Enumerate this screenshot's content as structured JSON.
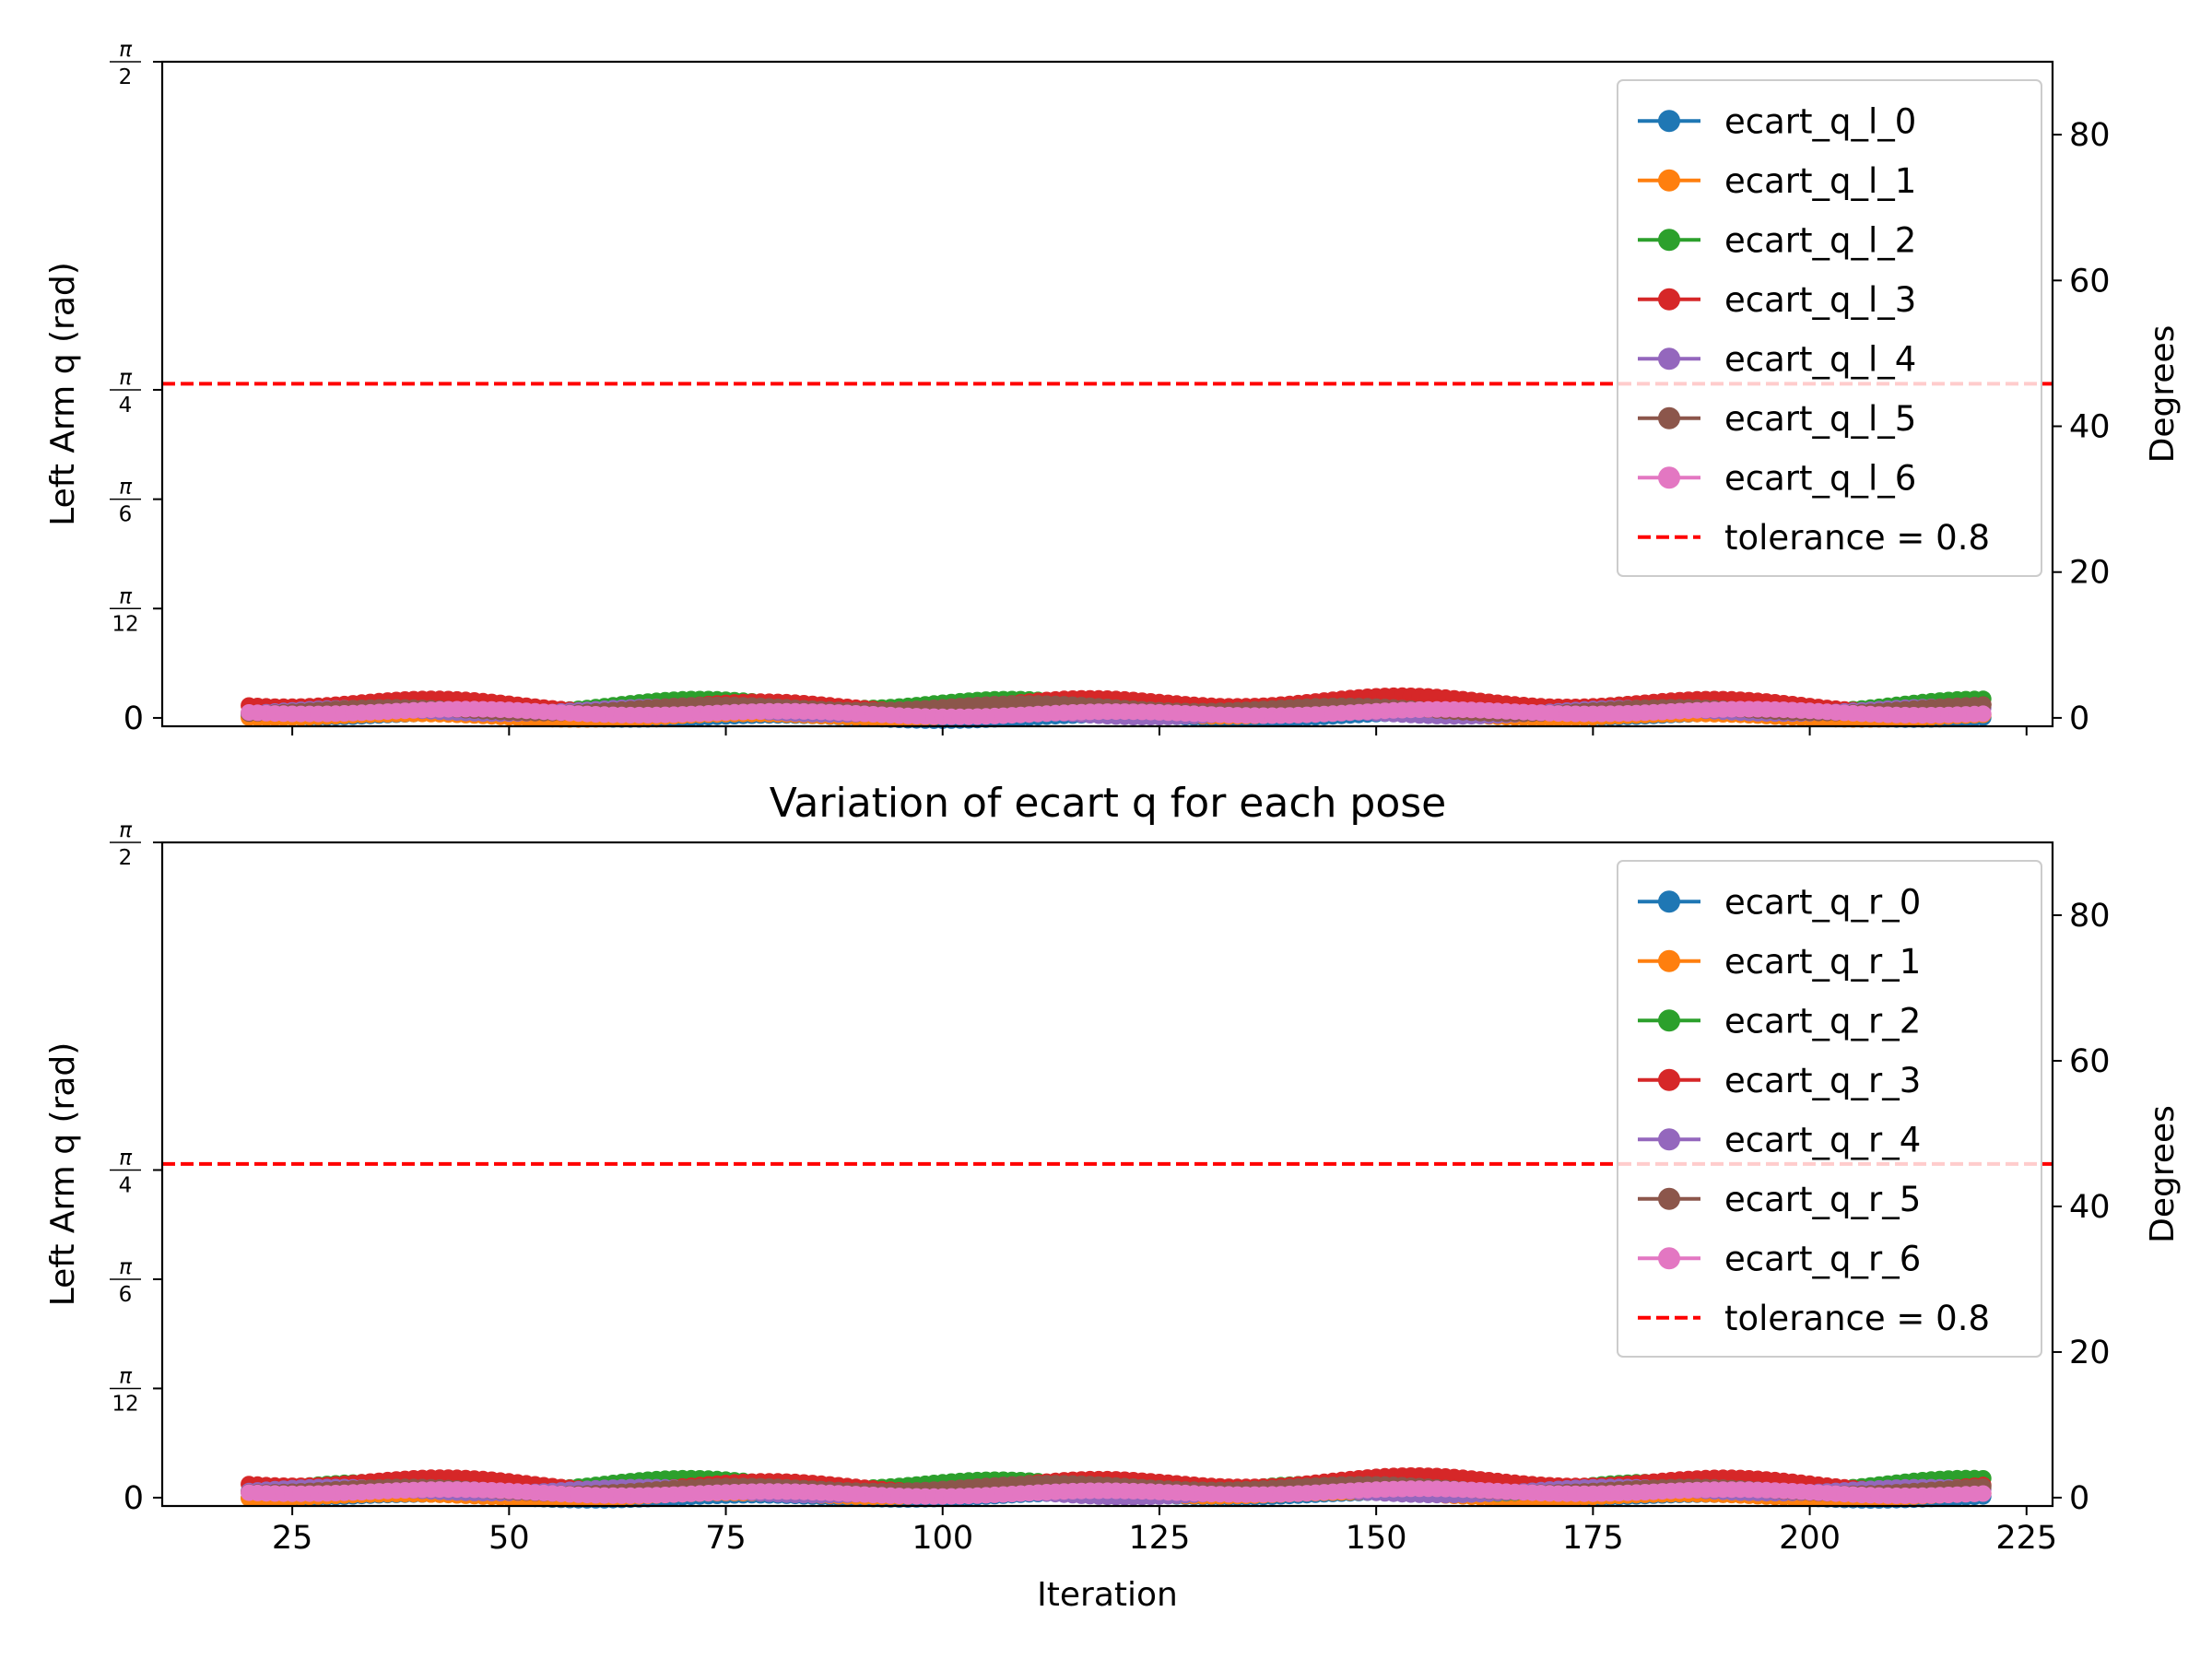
{
  "figure": {
    "title": "Variation of ecart q for each pose"
  },
  "chart_data": [
    {
      "type": "line",
      "title": "",
      "xlabel": "",
      "ylabel": "Left Arm q (rad)",
      "ylabel_right": "Degrees",
      "xlim": [
        10,
        228
      ],
      "ylim": [
        -0.02,
        1.5708
      ],
      "ylim_right_deg": [
        -1.15,
        90
      ],
      "x_ticks": [
        25,
        50,
        75,
        100,
        125,
        150,
        175,
        200,
        225
      ],
      "x_tick_labels": [
        "",
        "",
        "",
        "",
        "",
        "",
        "",
        "",
        ""
      ],
      "y_ticks": [
        {
          "value": 0,
          "label": "0"
        },
        {
          "value": 0.2618,
          "num": "π",
          "den": "12"
        },
        {
          "value": 0.5236,
          "num": "π",
          "den": "6"
        },
        {
          "value": 0.7854,
          "num": "π",
          "den": "4"
        },
        {
          "value": 1.5708,
          "num": "π",
          "den": "2"
        }
      ],
      "y_ticks_right": [
        0,
        20,
        40,
        60,
        80
      ],
      "tolerance": {
        "value": 0.8,
        "label": "tolerance = 0.8",
        "color": "#ff0000"
      },
      "legend_position": "upper right",
      "x": [
        20,
        220
      ],
      "series": [
        {
          "name": "ecart_q_l_0",
          "color": "#1f77b4",
          "base": 0.003,
          "amp": 0.006,
          "phase": 0.3
        },
        {
          "name": "ecart_q_l_1",
          "color": "#ff7f0e",
          "base": 0.006,
          "amp": 0.006,
          "phase": 1.1
        },
        {
          "name": "ecart_q_l_2",
          "color": "#2ca02c",
          "base": 0.028,
          "amp": 0.012,
          "phase": 2.0
        },
        {
          "name": "ecart_q_l_3",
          "color": "#d62728",
          "base": 0.034,
          "amp": 0.012,
          "phase": 0.7
        },
        {
          "name": "ecart_q_l_4",
          "color": "#9467bd",
          "base": 0.014,
          "amp": 0.008,
          "phase": 2.6
        },
        {
          "name": "ecart_q_l_5",
          "color": "#8c564b",
          "base": 0.022,
          "amp": 0.008,
          "phase": 1.7
        },
        {
          "name": "ecart_q_l_6",
          "color": "#e377c2",
          "base": 0.012,
          "amp": 0.006,
          "phase": 0.1
        }
      ]
    },
    {
      "type": "line",
      "title": "Variation of ecart q for each pose",
      "xlabel": "Iteration",
      "ylabel": "Left Arm q (rad)",
      "ylabel_right": "Degrees",
      "xlim": [
        10,
        228
      ],
      "ylim": [
        -0.02,
        1.5708
      ],
      "ylim_right_deg": [
        -1.15,
        90
      ],
      "x_ticks": [
        25,
        50,
        75,
        100,
        125,
        150,
        175,
        200,
        225
      ],
      "x_tick_labels": [
        "25",
        "50",
        "75",
        "100",
        "125",
        "150",
        "175",
        "200",
        "225"
      ],
      "y_ticks": [
        {
          "value": 0,
          "label": "0"
        },
        {
          "value": 0.2618,
          "num": "π",
          "den": "12"
        },
        {
          "value": 0.5236,
          "num": "π",
          "den": "6"
        },
        {
          "value": 0.7854,
          "num": "π",
          "den": "4"
        },
        {
          "value": 1.5708,
          "num": "π",
          "den": "2"
        }
      ],
      "y_ticks_right": [
        0,
        20,
        40,
        60,
        80
      ],
      "tolerance": {
        "value": 0.8,
        "label": "tolerance = 0.8",
        "color": "#ff0000"
      },
      "legend_position": "upper right",
      "x": [
        20,
        220
      ],
      "series": [
        {
          "name": "ecart_q_r_0",
          "color": "#1f77b4",
          "base": 0.003,
          "amp": 0.006,
          "phase": 0.9
        },
        {
          "name": "ecart_q_r_1",
          "color": "#ff7f0e",
          "base": 0.006,
          "amp": 0.006,
          "phase": 1.4
        },
        {
          "name": "ecart_q_r_2",
          "color": "#2ca02c",
          "base": 0.028,
          "amp": 0.012,
          "phase": 2.2
        },
        {
          "name": "ecart_q_r_3",
          "color": "#d62728",
          "base": 0.034,
          "amp": 0.012,
          "phase": 0.5
        },
        {
          "name": "ecart_q_r_4",
          "color": "#9467bd",
          "base": 0.014,
          "amp": 0.008,
          "phase": 2.9
        },
        {
          "name": "ecart_q_r_5",
          "color": "#8c564b",
          "base": 0.022,
          "amp": 0.008,
          "phase": 1.3
        },
        {
          "name": "ecart_q_r_6",
          "color": "#e377c2",
          "base": 0.012,
          "amp": 0.006,
          "phase": 0.4
        }
      ]
    }
  ]
}
